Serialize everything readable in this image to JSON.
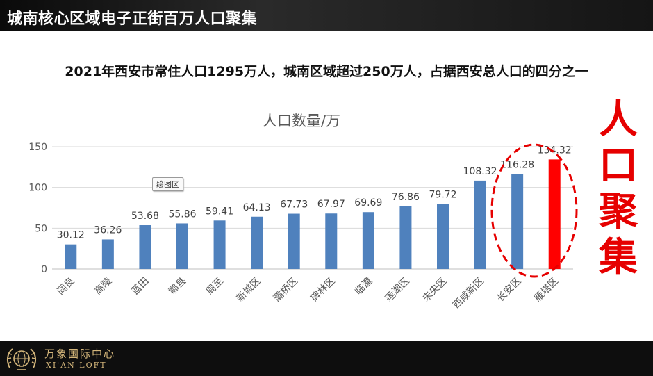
{
  "header": {
    "title": "城南核心区域电子正街百万人口聚集"
  },
  "headline": "2021年西安市常住人口1295万人，城南区域超过250万人，占据西安总人口的四分之一",
  "tooltip": "绘图区",
  "side_label": [
    "人",
    "口",
    "聚",
    "集"
  ],
  "footer": {
    "logo_cn": "万象国际中心",
    "logo_en": "XI'AN LOFT"
  },
  "colors": {
    "bar": "#4f81bd",
    "highlight": "#ff0000",
    "accent_text": "#e60000",
    "gold": "#d3b57a"
  },
  "chart_data": {
    "type": "bar",
    "title": "人口数量/万",
    "categories": [
      "阎良",
      "高陵",
      "蓝田",
      "鄠县",
      "周至",
      "新城区",
      "灞桥区",
      "碑林区",
      "临潼",
      "莲湖区",
      "未央区",
      "西咸新区",
      "长安区",
      "雁塔区"
    ],
    "values": [
      30.12,
      36.26,
      53.68,
      55.86,
      59.41,
      64.13,
      67.73,
      67.97,
      69.69,
      76.86,
      79.72,
      108.32,
      116.28,
      134.32
    ],
    "highlight_index": 13,
    "ylim": [
      0,
      150
    ],
    "yticks": [
      0,
      50,
      100,
      150
    ],
    "grid": true,
    "xlabel": "",
    "ylabel": ""
  }
}
